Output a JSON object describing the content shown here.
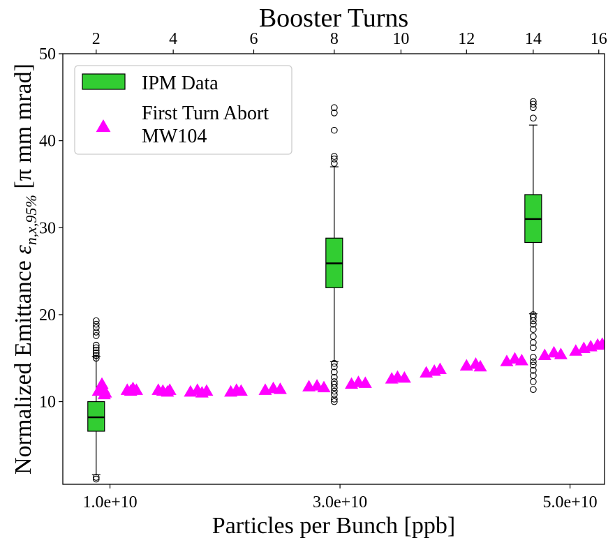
{
  "chart_data": {
    "type": "box+scatter",
    "title": "Booster Turns",
    "xlabel": "Particles per Bunch [ppb]",
    "ylabel": "Normalized Emittance ε n,x,95% [π mm mrad]",
    "ylabel_parts": {
      "main": "Normalized Emittance ",
      "symbol": "ε",
      "subscript": "n,x,95%",
      "unit": " [π mm mrad]"
    },
    "xlim": [
      5900000000.0,
      53000000000.0
    ],
    "ylim": [
      0.5,
      50
    ],
    "x_ticks": [
      {
        "value": 10000000000.0,
        "label": "1.0e+10"
      },
      {
        "value": 30000000000.0,
        "label": "3.0e+10"
      },
      {
        "value": 50000000000.0,
        "label": "5.0e+10"
      }
    ],
    "y_ticks": [
      {
        "value": 10,
        "label": "10"
      },
      {
        "value": 20,
        "label": "20"
      },
      {
        "value": 30,
        "label": "30"
      },
      {
        "value": 40,
        "label": "40"
      },
      {
        "value": 50,
        "label": "50"
      }
    ],
    "top_axis": {
      "label": "Booster Turns",
      "ticks": [
        {
          "turns": 2,
          "label": "2",
          "x": 8800000000.0
        },
        {
          "turns": 4,
          "label": "4",
          "x": 15500000000.0
        },
        {
          "turns": 6,
          "label": "6",
          "x": 22500000000.0
        },
        {
          "turns": 8,
          "label": "8",
          "x": 29500000000.0
        },
        {
          "turns": 10,
          "label": "10",
          "x": 35300000000.0
        },
        {
          "turns": 12,
          "label": "12",
          "x": 41000000000.0
        },
        {
          "turns": 14,
          "label": "14",
          "x": 46800000000.0
        },
        {
          "turns": 16,
          "label": "16",
          "x": 52500000000.0
        }
      ]
    },
    "legend": {
      "position": "upper-left",
      "entries": [
        {
          "name": "IPM Data",
          "marker": "box"
        },
        {
          "name": "First Turn Abort\nMW104",
          "lines": [
            "First Turn Abort",
            "MW104"
          ],
          "marker": "triangle"
        }
      ]
    },
    "series": [
      {
        "name": "IPM Data",
        "type": "box",
        "color": "#32cd32",
        "boxes": [
          {
            "x": 8800000000.0,
            "whisker_low": 1.6,
            "q1": 6.6,
            "median": 8.2,
            "q3": 10.0,
            "whisker_high": 15.2,
            "fliers": [
              1.1,
              1.3,
              15.0,
              15.3,
              15.6,
              15.9,
              16.2,
              16.5,
              17.6,
              18.0,
              18.5,
              18.9,
              19.3
            ]
          },
          {
            "x": 29500000000.0,
            "whisker_low": 14.6,
            "q1": 23.1,
            "median": 25.9,
            "q3": 28.8,
            "whisker_high": 37.0,
            "fliers": [
              10.0,
              10.3,
              10.8,
              11.2,
              11.6,
              12.0,
              12.3,
              12.8,
              13.4,
              14.0,
              14.4,
              37.4,
              37.9,
              38.2,
              41.2,
              43.2,
              43.8
            ]
          },
          {
            "x": 46800000000.0,
            "whisker_low": 20.1,
            "q1": 28.3,
            "median": 31.0,
            "q3": 33.8,
            "whisker_high": 41.8,
            "fliers": [
              11.4,
              12.3,
              13.0,
              13.6,
              14.2,
              14.6,
              15.1,
              16.2,
              16.8,
              17.5,
              18.3,
              18.9,
              19.3,
              19.7,
              20.0,
              42.6,
              43.8,
              44.2,
              44.5
            ]
          }
        ]
      },
      {
        "name": "First Turn Abort MW104",
        "type": "scatter",
        "marker": "triangle",
        "color": "#ff00ff",
        "points": [
          [
            9000000000.0,
            11.2
          ],
          [
            9200000000.0,
            11.6
          ],
          [
            9300000000.0,
            12.0
          ],
          [
            9450000000.0,
            11.4
          ],
          [
            9600000000.0,
            11.0
          ],
          [
            9500000000.0,
            10.8
          ],
          [
            11500000000.0,
            11.3
          ],
          [
            11800000000.0,
            11.2
          ],
          [
            12000000000.0,
            11.5
          ],
          [
            12300000000.0,
            11.3
          ],
          [
            14200000000.0,
            11.3
          ],
          [
            14600000000.0,
            11.2
          ],
          [
            15000000000.0,
            11.1
          ],
          [
            15200000000.0,
            11.3
          ],
          [
            17000000000.0,
            11.1
          ],
          [
            17600000000.0,
            11.3
          ],
          [
            18000000000.0,
            11.0
          ],
          [
            18400000000.0,
            11.2
          ],
          [
            20500000000.0,
            11.1
          ],
          [
            21000000000.0,
            11.3
          ],
          [
            21400000000.0,
            11.2
          ],
          [
            23500000000.0,
            11.3
          ],
          [
            24200000000.0,
            11.5
          ],
          [
            24800000000.0,
            11.4
          ],
          [
            27300000000.0,
            11.7
          ],
          [
            28000000000.0,
            11.8
          ],
          [
            28600000000.0,
            11.6
          ],
          [
            31000000000.0,
            12.0
          ],
          [
            31600000000.0,
            12.2
          ],
          [
            32200000000.0,
            12.1
          ],
          [
            34500000000.0,
            12.6
          ],
          [
            35000000000.0,
            12.8
          ],
          [
            35600000000.0,
            12.7
          ],
          [
            37500000000.0,
            13.3
          ],
          [
            38200000000.0,
            13.5
          ],
          [
            38700000000.0,
            13.7
          ],
          [
            41000000000.0,
            14.1
          ],
          [
            41800000000.0,
            14.3
          ],
          [
            42200000000.0,
            14.0
          ],
          [
            44500000000.0,
            14.6
          ],
          [
            45200000000.0,
            14.9
          ],
          [
            45800000000.0,
            14.7
          ],
          [
            47800000000.0,
            15.3
          ],
          [
            48600000000.0,
            15.6
          ],
          [
            49200000000.0,
            15.4
          ],
          [
            50500000000.0,
            15.8
          ],
          [
            51200000000.0,
            16.1
          ],
          [
            51800000000.0,
            16.3
          ],
          [
            52400000000.0,
            16.5
          ],
          [
            52800000000.0,
            16.6
          ]
        ]
      }
    ]
  }
}
